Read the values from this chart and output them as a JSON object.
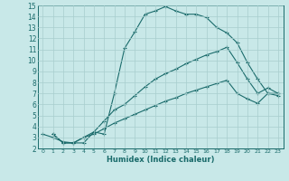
{
  "xlabel": "Humidex (Indice chaleur)",
  "ylabel": "",
  "xlim": [
    -0.5,
    23.5
  ],
  "ylim": [
    2,
    15
  ],
  "xticks": [
    0,
    1,
    2,
    3,
    4,
    5,
    6,
    7,
    8,
    9,
    10,
    11,
    12,
    13,
    14,
    15,
    16,
    17,
    18,
    19,
    20,
    21,
    22,
    23
  ],
  "yticks": [
    2,
    3,
    4,
    5,
    6,
    7,
    8,
    9,
    10,
    11,
    12,
    13,
    14,
    15
  ],
  "bg_color": "#c8e8e8",
  "grid_color": "#a8cece",
  "line_color": "#1a6b6b",
  "line1_x": [
    0,
    1,
    2,
    3,
    4,
    5,
    6,
    7,
    8,
    9,
    10,
    11,
    12,
    13,
    14,
    15,
    16,
    17,
    18,
    19,
    20,
    21,
    22,
    23
  ],
  "line1_y": [
    3.3,
    3.0,
    2.6,
    2.5,
    2.5,
    3.5,
    3.3,
    7.0,
    11.1,
    12.6,
    14.2,
    14.5,
    14.9,
    14.5,
    14.2,
    14.2,
    13.9,
    13.0,
    12.5,
    11.6,
    9.8,
    8.3,
    7.0,
    6.8
  ],
  "line2_x": [
    1,
    2,
    3,
    4,
    5,
    6,
    7,
    8,
    9,
    10,
    11,
    12,
    13,
    14,
    15,
    16,
    17,
    18,
    19,
    20,
    21,
    22,
    23
  ],
  "line2_y": [
    3.3,
    2.5,
    2.5,
    3.0,
    3.5,
    4.5,
    5.5,
    6.0,
    6.8,
    7.6,
    8.3,
    8.8,
    9.2,
    9.7,
    10.1,
    10.5,
    10.8,
    11.2,
    9.8,
    8.3,
    7.0,
    7.5,
    7.0
  ],
  "line3_x": [
    1,
    2,
    3,
    4,
    5,
    6,
    7,
    8,
    9,
    10,
    11,
    12,
    13,
    14,
    15,
    16,
    17,
    18,
    19,
    20,
    21,
    22,
    23
  ],
  "line3_y": [
    3.3,
    2.5,
    2.5,
    3.0,
    3.3,
    3.8,
    4.3,
    4.7,
    5.1,
    5.5,
    5.9,
    6.3,
    6.6,
    7.0,
    7.3,
    7.6,
    7.9,
    8.2,
    7.0,
    6.5,
    6.1,
    7.0,
    7.0
  ]
}
